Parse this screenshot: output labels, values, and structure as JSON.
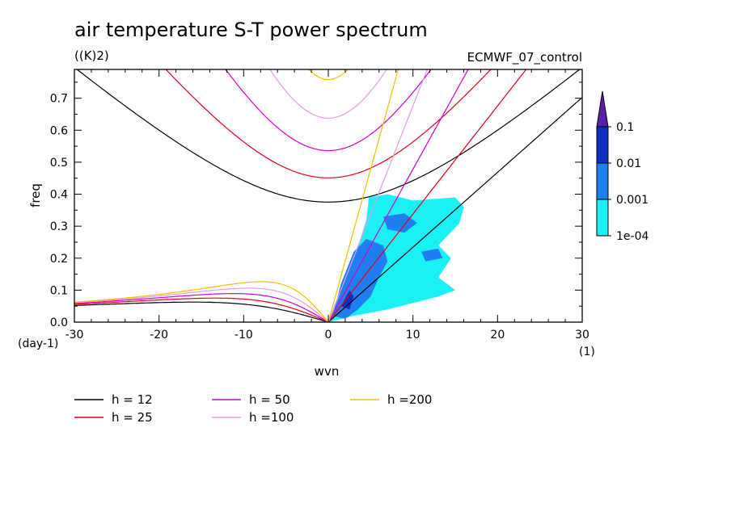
{
  "chart_data": {
    "type": "contour",
    "title": "air temperature S-T power spectrum",
    "units_label": "((K)2)",
    "run_label": "ECMWF_07_control",
    "xlabel": "wvn",
    "ylabel": "freq",
    "x_unit_label": "(1)",
    "y_unit_label": "(day-1)",
    "xlim": [
      -30,
      30
    ],
    "ylim": [
      0,
      0.79
    ],
    "x_ticks": [
      "-30",
      "-20",
      "-10",
      "0",
      "10",
      "20",
      "30"
    ],
    "y_ticks": [
      "0.0",
      "0.1",
      "0.2",
      "0.3",
      "0.4",
      "0.5",
      "0.6",
      "0.7"
    ],
    "colorbar": {
      "levels": [
        "0.1",
        "0.01",
        "0.001",
        "1e-04"
      ],
      "colors": [
        "#5a1ea8",
        "#0c2fc0",
        "#1f7ff0",
        "#19f1f5"
      ]
    },
    "dispersion_curves": [
      {
        "name": "h = 12",
        "h": 12,
        "color": "#000000"
      },
      {
        "name": "h = 25",
        "h": 25,
        "color": "#e0001a"
      },
      {
        "name": "h = 50",
        "h": 50,
        "color": "#d000d0"
      },
      {
        "name": "h =100",
        "h": 100,
        "color": "#e79ae5"
      },
      {
        "name": "h =200",
        "h": 200,
        "color": "#f5c000"
      }
    ],
    "shaded_regions": [
      {
        "level": "1e-04",
        "color": "#19f1f5",
        "polygon": [
          [
            0,
            0
          ],
          [
            2.5,
            0.15
          ],
          [
            4.5,
            0.32
          ],
          [
            4.8,
            0.39
          ],
          [
            7,
            0.4
          ],
          [
            10,
            0.38
          ],
          [
            15,
            0.39
          ],
          [
            16,
            0.36
          ],
          [
            15.5,
            0.31
          ],
          [
            13,
            0.24
          ],
          [
            14.5,
            0.2
          ],
          [
            13,
            0.14
          ],
          [
            15,
            0.1
          ],
          [
            13,
            0.08
          ],
          [
            10,
            0.06
          ],
          [
            7,
            0.04
          ],
          [
            3,
            0.02
          ]
        ]
      },
      {
        "level": "0.001",
        "color": "#1f7ff0",
        "polygon": [
          [
            0.5,
            0.02
          ],
          [
            1.5,
            0.12
          ],
          [
            3,
            0.22
          ],
          [
            4.5,
            0.26
          ],
          [
            6.5,
            0.24
          ],
          [
            7,
            0.19
          ],
          [
            6,
            0.14
          ],
          [
            5,
            0.08
          ],
          [
            3.5,
            0.04
          ],
          [
            2,
            0.01
          ]
        ]
      },
      {
        "level": "0.001",
        "color": "#1f7ff0",
        "polygon": [
          [
            6.5,
            0.33
          ],
          [
            9,
            0.34
          ],
          [
            10.5,
            0.31
          ],
          [
            9,
            0.28
          ],
          [
            7,
            0.29
          ]
        ]
      },
      {
        "level": "0.001",
        "color": "#1f7ff0",
        "polygon": [
          [
            11,
            0.22
          ],
          [
            13,
            0.23
          ],
          [
            13.5,
            0.2
          ],
          [
            11.5,
            0.19
          ]
        ]
      },
      {
        "level": "0.01",
        "color": "#0c2fc0",
        "polygon": [
          [
            1.5,
            0.05
          ],
          [
            2.5,
            0.1
          ],
          [
            3,
            0.08
          ],
          [
            2.5,
            0.04
          ]
        ]
      }
    ]
  },
  "legend": [
    {
      "label": "h = 12",
      "color": "#000000"
    },
    {
      "label": "h = 25",
      "color": "#e0001a"
    },
    {
      "label": "h = 50",
      "color": "#d000d0"
    },
    {
      "label": "h =100",
      "color": "#e79ae5"
    },
    {
      "label": "h =200",
      "color": "#f5c000"
    }
  ]
}
